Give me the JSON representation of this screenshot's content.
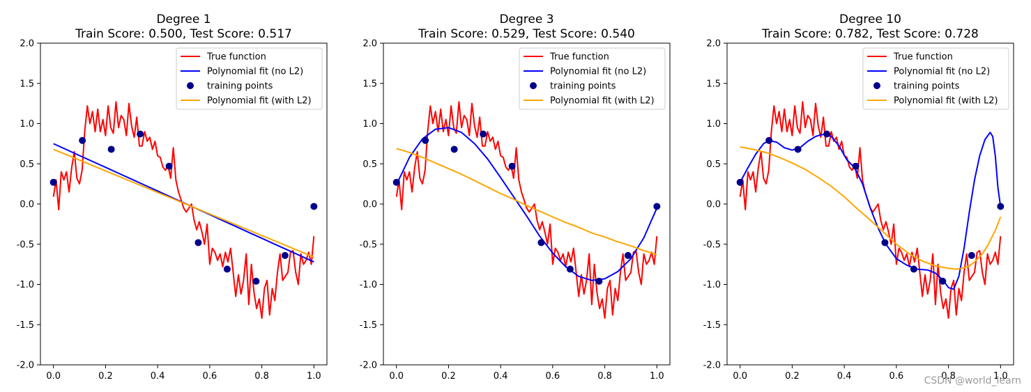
{
  "watermark": "CSDN @world_learn",
  "chart_data": [
    {
      "type": "line",
      "title": "Degree 1",
      "subtitle": "Train Score: 0.500, Test Score: 0.517",
      "xlim": [
        -0.05,
        1.05
      ],
      "ylim": [
        -2.0,
        2.0
      ],
      "xticks": [
        "0.0",
        "0.2",
        "0.4",
        "0.6",
        "0.8",
        "1.0"
      ],
      "xtick_values": [
        0.0,
        0.2,
        0.4,
        0.6,
        0.8,
        1.0
      ],
      "yticks": [
        "-2.0",
        "-1.5",
        "-1.0",
        "-0.5",
        "0.0",
        "0.5",
        "1.0",
        "1.5",
        "2.0"
      ],
      "ytick_values": [
        -2.0,
        -1.5,
        -1.0,
        -0.5,
        0.0,
        0.5,
        1.0,
        1.5,
        2.0
      ],
      "legend_position": "top-right",
      "legend": [
        "True function",
        "Polynomial fit (no L2)",
        "training points",
        "Polynomial fit (with L2)"
      ],
      "colors": {
        "true": "#ff0000",
        "noL2": "#0000ff",
        "points": "#00008b",
        "withL2": "#ffa500"
      },
      "true_function": {
        "x": [
          0.0,
          0.01,
          0.02,
          0.03,
          0.04,
          0.05,
          0.06,
          0.07,
          0.08,
          0.09,
          0.1,
          0.11,
          0.12,
          0.13,
          0.14,
          0.15,
          0.16,
          0.17,
          0.18,
          0.19,
          0.2,
          0.21,
          0.22,
          0.23,
          0.24,
          0.25,
          0.26,
          0.27,
          0.28,
          0.29,
          0.3,
          0.31,
          0.32,
          0.33,
          0.34,
          0.35,
          0.36,
          0.37,
          0.38,
          0.39,
          0.4,
          0.41,
          0.42,
          0.43,
          0.44,
          0.45,
          0.46,
          0.47,
          0.48,
          0.49,
          0.5,
          0.51,
          0.52,
          0.53,
          0.54,
          0.55,
          0.56,
          0.57,
          0.58,
          0.59,
          0.6,
          0.61,
          0.62,
          0.63,
          0.64,
          0.65,
          0.66,
          0.67,
          0.68,
          0.69,
          0.7,
          0.71,
          0.72,
          0.73,
          0.74,
          0.75,
          0.76,
          0.77,
          0.78,
          0.79,
          0.8,
          0.81,
          0.82,
          0.83,
          0.84,
          0.85,
          0.86,
          0.87,
          0.88,
          0.89,
          0.9,
          0.91,
          0.92,
          0.93,
          0.94,
          0.95,
          0.96,
          0.97,
          0.98,
          0.99,
          1.0
        ],
        "y": [
          0.09,
          0.3,
          -0.07,
          0.4,
          0.3,
          0.4,
          0.15,
          0.45,
          0.65,
          0.32,
          0.25,
          0.42,
          0.9,
          1.22,
          1.0,
          1.15,
          0.9,
          1.18,
          0.9,
          1.05,
          0.85,
          1.22,
          0.95,
          0.88,
          1.27,
          0.95,
          1.1,
          1.05,
          0.85,
          1.25,
          0.97,
          0.83,
          1.08,
          0.72,
          0.72,
          0.9,
          0.78,
          0.83,
          0.68,
          0.78,
          0.6,
          0.58,
          0.46,
          0.42,
          0.48,
          0.32,
          0.7,
          0.3,
          0.15,
          0.05,
          -0.05,
          -0.1,
          -0.05,
          0.0,
          -0.2,
          -0.32,
          -0.22,
          -0.35,
          -0.5,
          -0.25,
          -0.75,
          -0.55,
          -0.6,
          -0.7,
          -0.62,
          -0.78,
          -0.6,
          -0.72,
          -0.55,
          -0.85,
          -1.15,
          -0.88,
          -1.12,
          -0.95,
          -0.62,
          -1.25,
          -0.75,
          -1.1,
          -1.3,
          -1.18,
          -1.42,
          -1.05,
          -0.95,
          -1.38,
          -1.05,
          -1.2,
          -0.85,
          -0.62,
          -0.95,
          -0.9,
          -0.85,
          -0.6,
          -0.58,
          -0.85,
          -1.0,
          -0.62,
          -0.75,
          -0.7,
          -0.6,
          -0.75,
          -0.4
        ]
      },
      "poly_noL2": {
        "x": [
          0.0,
          0.05,
          0.1,
          0.15,
          0.2,
          0.25,
          0.3,
          0.35,
          0.4,
          0.45,
          0.5,
          0.55,
          0.6,
          0.65,
          0.7,
          0.75,
          0.8,
          0.85,
          0.9,
          0.95,
          1.0
        ],
        "y": [
          0.75,
          0.676,
          0.603,
          0.529,
          0.456,
          0.382,
          0.309,
          0.235,
          0.162,
          0.088,
          0.015,
          -0.059,
          -0.132,
          -0.206,
          -0.279,
          -0.353,
          -0.426,
          -0.5,
          -0.573,
          -0.647,
          -0.72
        ]
      },
      "poly_withL2": {
        "x": [
          0.0,
          0.05,
          0.1,
          0.15,
          0.2,
          0.25,
          0.3,
          0.35,
          0.4,
          0.45,
          0.5,
          0.55,
          0.6,
          0.65,
          0.7,
          0.75,
          0.8,
          0.85,
          0.9,
          0.95,
          1.0
        ],
        "y": [
          0.68,
          0.613,
          0.546,
          0.479,
          0.412,
          0.345,
          0.278,
          0.211,
          0.144,
          0.077,
          0.01,
          -0.057,
          -0.124,
          -0.191,
          -0.258,
          -0.325,
          -0.392,
          -0.459,
          -0.526,
          -0.593,
          -0.66
        ]
      },
      "training_points": {
        "x": [
          0.0,
          0.111,
          0.222,
          0.333,
          0.444,
          0.556,
          0.667,
          0.778,
          0.889,
          1.0
        ],
        "y": [
          0.27,
          0.79,
          0.68,
          0.87,
          0.47,
          -0.48,
          -0.81,
          -0.96,
          -0.64,
          -0.03
        ]
      }
    },
    {
      "type": "line",
      "title": "Degree 3",
      "subtitle": "Train Score: 0.529, Test Score: 0.540",
      "xlim": [
        -0.05,
        1.05
      ],
      "ylim": [
        -2.0,
        2.0
      ],
      "xticks": [
        "0.0",
        "0.2",
        "0.4",
        "0.6",
        "0.8",
        "1.0"
      ],
      "xtick_values": [
        0.0,
        0.2,
        0.4,
        0.6,
        0.8,
        1.0
      ],
      "yticks": [
        "-2.0",
        "-1.5",
        "-1.0",
        "-0.5",
        "0.0",
        "0.5",
        "1.0",
        "1.5",
        "2.0"
      ],
      "ytick_values": [
        -2.0,
        -1.5,
        -1.0,
        -0.5,
        0.0,
        0.5,
        1.0,
        1.5,
        2.0
      ],
      "legend_position": "top-right",
      "legend": [
        "True function",
        "Polynomial fit (no L2)",
        "training points",
        "Polynomial fit (with L2)"
      ],
      "colors": {
        "true": "#ff0000",
        "noL2": "#0000ff",
        "points": "#00008b",
        "withL2": "#ffa500"
      },
      "true_function": {
        "x": [
          0.0,
          0.01,
          0.02,
          0.03,
          0.04,
          0.05,
          0.06,
          0.07,
          0.08,
          0.09,
          0.1,
          0.11,
          0.12,
          0.13,
          0.14,
          0.15,
          0.16,
          0.17,
          0.18,
          0.19,
          0.2,
          0.21,
          0.22,
          0.23,
          0.24,
          0.25,
          0.26,
          0.27,
          0.28,
          0.29,
          0.3,
          0.31,
          0.32,
          0.33,
          0.34,
          0.35,
          0.36,
          0.37,
          0.38,
          0.39,
          0.4,
          0.41,
          0.42,
          0.43,
          0.44,
          0.45,
          0.46,
          0.47,
          0.48,
          0.49,
          0.5,
          0.51,
          0.52,
          0.53,
          0.54,
          0.55,
          0.56,
          0.57,
          0.58,
          0.59,
          0.6,
          0.61,
          0.62,
          0.63,
          0.64,
          0.65,
          0.66,
          0.67,
          0.68,
          0.69,
          0.7,
          0.71,
          0.72,
          0.73,
          0.74,
          0.75,
          0.76,
          0.77,
          0.78,
          0.79,
          0.8,
          0.81,
          0.82,
          0.83,
          0.84,
          0.85,
          0.86,
          0.87,
          0.88,
          0.89,
          0.9,
          0.91,
          0.92,
          0.93,
          0.94,
          0.95,
          0.96,
          0.97,
          0.98,
          0.99,
          1.0
        ],
        "y": [
          0.09,
          0.3,
          -0.07,
          0.4,
          0.3,
          0.4,
          0.15,
          0.45,
          0.65,
          0.32,
          0.25,
          0.42,
          0.9,
          1.22,
          1.0,
          1.15,
          0.9,
          1.18,
          0.9,
          1.05,
          0.85,
          1.22,
          0.95,
          0.88,
          1.27,
          0.95,
          1.1,
          1.05,
          0.85,
          1.25,
          0.97,
          0.83,
          1.08,
          0.72,
          0.72,
          0.9,
          0.78,
          0.83,
          0.68,
          0.78,
          0.6,
          0.58,
          0.46,
          0.42,
          0.48,
          0.32,
          0.7,
          0.3,
          0.15,
          0.05,
          -0.05,
          -0.1,
          -0.05,
          0.0,
          -0.2,
          -0.32,
          -0.22,
          -0.35,
          -0.5,
          -0.25,
          -0.75,
          -0.55,
          -0.6,
          -0.7,
          -0.62,
          -0.78,
          -0.6,
          -0.72,
          -0.55,
          -0.85,
          -1.15,
          -0.88,
          -1.12,
          -0.95,
          -0.62,
          -1.25,
          -0.75,
          -1.1,
          -1.3,
          -1.18,
          -1.42,
          -1.05,
          -0.95,
          -1.38,
          -1.05,
          -1.2,
          -0.85,
          -0.62,
          -0.95,
          -0.9,
          -0.85,
          -0.6,
          -0.58,
          -0.85,
          -1.0,
          -0.62,
          -0.75,
          -0.7,
          -0.6,
          -0.75,
          -0.4
        ]
      },
      "poly_noL2": {
        "x": [
          0.0,
          0.05,
          0.1,
          0.15,
          0.2,
          0.25,
          0.3,
          0.35,
          0.4,
          0.45,
          0.5,
          0.55,
          0.6,
          0.65,
          0.7,
          0.75,
          0.8,
          0.85,
          0.9,
          0.95,
          1.0
        ],
        "y": [
          0.24,
          0.58,
          0.81,
          0.93,
          0.95,
          0.89,
          0.75,
          0.56,
          0.33,
          0.09,
          -0.15,
          -0.4,
          -0.61,
          -0.78,
          -0.9,
          -0.95,
          -0.93,
          -0.84,
          -0.68,
          -0.42,
          -0.05
        ]
      },
      "poly_withL2": {
        "x": [
          0.0,
          0.05,
          0.1,
          0.15,
          0.2,
          0.25,
          0.3,
          0.35,
          0.4,
          0.45,
          0.5,
          0.55,
          0.6,
          0.65,
          0.7,
          0.75,
          0.8,
          0.85,
          0.9,
          0.95,
          1.0
        ],
        "y": [
          0.69,
          0.64,
          0.58,
          0.51,
          0.44,
          0.37,
          0.29,
          0.21,
          0.13,
          0.06,
          -0.02,
          -0.09,
          -0.16,
          -0.23,
          -0.29,
          -0.36,
          -0.41,
          -0.47,
          -0.52,
          -0.58,
          -0.63
        ]
      },
      "training_points": {
        "x": [
          0.0,
          0.111,
          0.222,
          0.333,
          0.444,
          0.556,
          0.667,
          0.778,
          0.889,
          1.0
        ],
        "y": [
          0.27,
          0.79,
          0.68,
          0.87,
          0.47,
          -0.48,
          -0.81,
          -0.96,
          -0.64,
          -0.03
        ]
      }
    },
    {
      "type": "line",
      "title": "Degree 10",
      "subtitle": "Train Score: 0.782, Test Score: 0.728",
      "xlim": [
        -0.05,
        1.05
      ],
      "ylim": [
        -2.0,
        2.0
      ],
      "xticks": [
        "0.0",
        "0.2",
        "0.4",
        "0.6",
        "0.8",
        "1.0"
      ],
      "xtick_values": [
        0.0,
        0.2,
        0.4,
        0.6,
        0.8,
        1.0
      ],
      "yticks": [
        "-2.0",
        "-1.5",
        "-1.0",
        "-0.5",
        "0.0",
        "0.5",
        "1.0",
        "1.5",
        "2.0"
      ],
      "ytick_values": [
        -2.0,
        -1.5,
        -1.0,
        -0.5,
        0.0,
        0.5,
        1.0,
        1.5,
        2.0
      ],
      "legend_position": "top-right",
      "legend": [
        "True function",
        "Polynomial fit (no L2)",
        "training points",
        "Polynomial fit (with L2)"
      ],
      "colors": {
        "true": "#ff0000",
        "noL2": "#0000ff",
        "points": "#00008b",
        "withL2": "#ffa500"
      },
      "true_function": {
        "x": [
          0.0,
          0.01,
          0.02,
          0.03,
          0.04,
          0.05,
          0.06,
          0.07,
          0.08,
          0.09,
          0.1,
          0.11,
          0.12,
          0.13,
          0.14,
          0.15,
          0.16,
          0.17,
          0.18,
          0.19,
          0.2,
          0.21,
          0.22,
          0.23,
          0.24,
          0.25,
          0.26,
          0.27,
          0.28,
          0.29,
          0.3,
          0.31,
          0.32,
          0.33,
          0.34,
          0.35,
          0.36,
          0.37,
          0.38,
          0.39,
          0.4,
          0.41,
          0.42,
          0.43,
          0.44,
          0.45,
          0.46,
          0.47,
          0.48,
          0.49,
          0.5,
          0.51,
          0.52,
          0.53,
          0.54,
          0.55,
          0.56,
          0.57,
          0.58,
          0.59,
          0.6,
          0.61,
          0.62,
          0.63,
          0.64,
          0.65,
          0.66,
          0.67,
          0.68,
          0.69,
          0.7,
          0.71,
          0.72,
          0.73,
          0.74,
          0.75,
          0.76,
          0.77,
          0.78,
          0.79,
          0.8,
          0.81,
          0.82,
          0.83,
          0.84,
          0.85,
          0.86,
          0.87,
          0.88,
          0.89,
          0.9,
          0.91,
          0.92,
          0.93,
          0.94,
          0.95,
          0.96,
          0.97,
          0.98,
          0.99,
          1.0
        ],
        "y": [
          0.09,
          0.3,
          -0.07,
          0.4,
          0.3,
          0.4,
          0.15,
          0.45,
          0.65,
          0.32,
          0.25,
          0.42,
          0.9,
          1.22,
          1.0,
          1.15,
          0.9,
          1.18,
          0.9,
          1.05,
          0.85,
          1.22,
          0.95,
          0.88,
          1.27,
          0.95,
          1.1,
          1.05,
          0.85,
          1.25,
          0.97,
          0.83,
          1.08,
          0.72,
          0.72,
          0.9,
          0.78,
          0.83,
          0.68,
          0.78,
          0.6,
          0.58,
          0.46,
          0.42,
          0.48,
          0.32,
          0.7,
          0.3,
          0.15,
          0.05,
          -0.05,
          -0.1,
          -0.05,
          0.0,
          -0.2,
          -0.32,
          -0.22,
          -0.35,
          -0.5,
          -0.25,
          -0.75,
          -0.55,
          -0.6,
          -0.7,
          -0.62,
          -0.78,
          -0.6,
          -0.72,
          -0.55,
          -0.85,
          -1.15,
          -0.88,
          -1.12,
          -0.95,
          -0.62,
          -1.25,
          -0.75,
          -1.1,
          -1.3,
          -1.18,
          -1.42,
          -1.05,
          -0.95,
          -1.38,
          -1.05,
          -1.2,
          -0.85,
          -0.62,
          -0.95,
          -0.9,
          -0.85,
          -0.6,
          -0.58,
          -0.85,
          -1.0,
          -0.62,
          -0.75,
          -0.7,
          -0.6,
          -0.75,
          -0.4
        ]
      },
      "poly_noL2": {
        "x": [
          0.0,
          0.03,
          0.06,
          0.09,
          0.11,
          0.14,
          0.17,
          0.2,
          0.23,
          0.26,
          0.29,
          0.31,
          0.33,
          0.35,
          0.38,
          0.41,
          0.44,
          0.47,
          0.5,
          0.53,
          0.56,
          0.6,
          0.64,
          0.68,
          0.72,
          0.75,
          0.78,
          0.8,
          0.82,
          0.84,
          0.86,
          0.88,
          0.9,
          0.92,
          0.94,
          0.96,
          0.97,
          0.98,
          0.99,
          1.0
        ],
        "y": [
          0.27,
          0.45,
          0.62,
          0.75,
          0.79,
          0.77,
          0.7,
          0.67,
          0.7,
          0.78,
          0.84,
          0.86,
          0.87,
          0.84,
          0.72,
          0.55,
          0.45,
          0.25,
          -0.05,
          -0.3,
          -0.5,
          -0.68,
          -0.76,
          -0.81,
          -0.82,
          -0.86,
          -0.95,
          -1.04,
          -1.06,
          -0.9,
          -0.55,
          -0.1,
          0.3,
          0.6,
          0.8,
          0.89,
          0.84,
          0.6,
          0.2,
          -0.03
        ]
      },
      "poly_withL2": {
        "x": [
          0.0,
          0.05,
          0.1,
          0.15,
          0.2,
          0.25,
          0.3,
          0.35,
          0.4,
          0.45,
          0.5,
          0.55,
          0.6,
          0.65,
          0.7,
          0.75,
          0.8,
          0.83,
          0.85,
          0.88,
          0.9,
          0.93,
          0.95,
          0.98,
          1.0
        ],
        "y": [
          0.71,
          0.68,
          0.64,
          0.58,
          0.51,
          0.43,
          0.33,
          0.22,
          0.09,
          -0.06,
          -0.2,
          -0.35,
          -0.5,
          -0.62,
          -0.71,
          -0.77,
          -0.8,
          -0.81,
          -0.8,
          -0.77,
          -0.72,
          -0.62,
          -0.52,
          -0.33,
          -0.16
        ]
      },
      "training_points": {
        "x": [
          0.0,
          0.111,
          0.222,
          0.333,
          0.444,
          0.556,
          0.667,
          0.778,
          0.889,
          1.0
        ],
        "y": [
          0.27,
          0.79,
          0.68,
          0.87,
          0.47,
          -0.48,
          -0.81,
          -0.96,
          -0.64,
          -0.03
        ]
      }
    }
  ]
}
